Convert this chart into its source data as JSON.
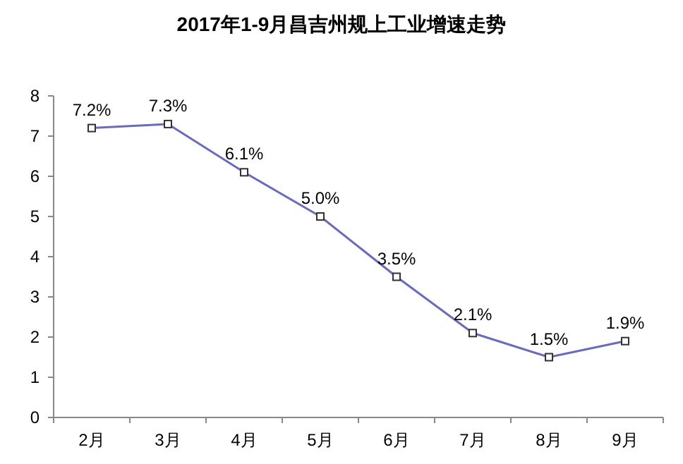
{
  "chart_data": {
    "type": "line",
    "title": "2017年1-9月昌吉州规上工业增速走势",
    "categories": [
      "2月",
      "3月",
      "4月",
      "5月",
      "6月",
      "7月",
      "8月",
      "9月"
    ],
    "series": [
      {
        "color": "#6a6abf",
        "values": [
          7.2,
          7.3,
          6.1,
          5.0,
          3.5,
          2.1,
          1.5,
          1.9
        ],
        "value_labels": [
          "7.2%",
          "7.3%",
          "6.1%",
          "5.0%",
          "3.5%",
          "2.1%",
          "1.5%",
          "1.9%"
        ]
      }
    ],
    "ylim": [
      0,
      8
    ],
    "yticks": [
      0,
      1,
      2,
      3,
      4,
      5,
      6,
      7,
      8
    ],
    "marker": "square",
    "grid": false
  }
}
